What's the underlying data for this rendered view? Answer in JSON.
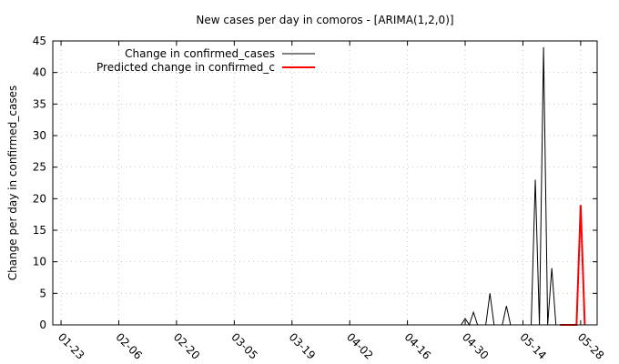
{
  "chart_data": {
    "type": "line",
    "title": "New cases per day in comoros -  [ARIMA(1,2,0)]",
    "xlabel": "",
    "ylabel": "Change per day in confirmed_cases",
    "x_axis": "date",
    "x_tick_labels": [
      "01-23",
      "02-06",
      "02-20",
      "03-05",
      "03-19",
      "04-02",
      "04-16",
      "04-30",
      "05-14",
      "05-28"
    ],
    "x_tick_dates": [
      "2020-01-23",
      "2020-02-06",
      "2020-02-20",
      "2020-03-05",
      "2020-03-19",
      "2020-04-02",
      "2020-04-16",
      "2020-04-30",
      "2020-05-14",
      "2020-05-28"
    ],
    "xlim": [
      "2020-01-21",
      "2020-06-01"
    ],
    "ylim": [
      0,
      45
    ],
    "y_ticks": [
      0,
      5,
      10,
      15,
      20,
      25,
      30,
      35,
      40,
      45
    ],
    "grid": true,
    "legend_position": "top-left",
    "series": [
      {
        "name": "Change in confirmed_cases",
        "color": "#000000",
        "x": [
          "2020-04-29",
          "2020-04-30",
          "2020-05-01",
          "2020-05-02",
          "2020-05-03",
          "2020-05-04",
          "2020-05-05",
          "2020-05-06",
          "2020-05-07",
          "2020-05-08",
          "2020-05-09",
          "2020-05-10",
          "2020-05-11",
          "2020-05-16",
          "2020-05-17",
          "2020-05-18",
          "2020-05-19",
          "2020-05-20",
          "2020-05-21",
          "2020-05-22",
          "2020-05-23"
        ],
        "y": [
          0,
          1,
          0,
          2,
          0,
          0,
          0,
          5,
          0,
          0,
          0,
          3,
          0,
          0,
          23,
          0,
          44,
          0,
          9,
          0,
          0
        ]
      },
      {
        "name": "Predicted change in confirmed_c",
        "color": "#ff0000",
        "x": [
          "2020-05-23",
          "2020-05-24",
          "2020-05-25",
          "2020-05-26",
          "2020-05-27",
          "2020-05-28",
          "2020-05-29"
        ],
        "y": [
          0,
          0,
          0,
          0,
          0,
          19,
          0
        ]
      }
    ]
  }
}
